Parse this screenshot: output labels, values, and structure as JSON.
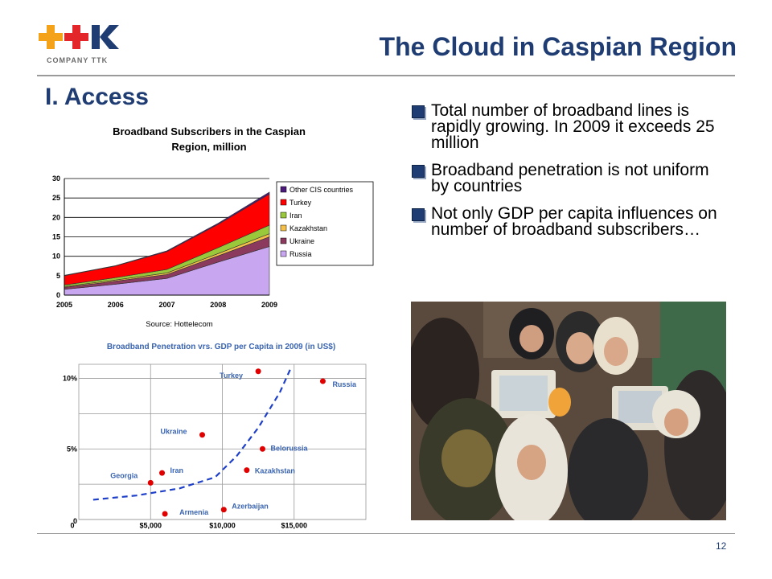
{
  "logo": {
    "mark": "++K",
    "subtitle": "COMPANY TTK"
  },
  "title": "The Cloud in Caspian Region",
  "section": "I. Access",
  "bullets": [
    "Total number of broadband lines is rapidly growing. In 2009 it exceeds 25 million",
    "Broadband penetration is not uniform by countries",
    "Not only GDP per capita influences on number of broadband subscribers…"
  ],
  "page_number": "12",
  "colors": {
    "title": "#1f3d73",
    "logo_orange": "#f5a21b",
    "logo_red": "#e2262a"
  },
  "chart_data": [
    {
      "type": "area",
      "title": "Broadband Subscribers in the Caspian Region, million",
      "source": "Source: Hottelecom",
      "x": [
        2005,
        2006,
        2007,
        2008,
        2009
      ],
      "ylim": [
        0,
        30
      ],
      "yticks": [
        0,
        5,
        10,
        15,
        20,
        25,
        30
      ],
      "stacked": true,
      "legend_position": "right",
      "series": [
        {
          "name": "Russia",
          "color": "#c9a6f0",
          "values": [
            1.5,
            2.8,
            4.3,
            8.5,
            12.5
          ]
        },
        {
          "name": "Ukraine",
          "color": "#8b3a5e",
          "values": [
            0.5,
            0.8,
            1.0,
            1.6,
            2.5
          ]
        },
        {
          "name": "Kazakhstan",
          "color": "#f5c04a",
          "values": [
            0.2,
            0.3,
            0.4,
            0.6,
            0.8
          ]
        },
        {
          "name": "Iran",
          "color": "#99c93a",
          "values": [
            0.4,
            0.6,
            0.9,
            1.5,
            2.2
          ]
        },
        {
          "name": "Turkey",
          "color": "#ff0000",
          "values": [
            2.4,
            3.0,
            4.6,
            6.0,
            8.0
          ]
        },
        {
          "name": "Other CIS countries",
          "color": "#4b1a7a",
          "values": [
            0.1,
            0.1,
            0.2,
            0.3,
            0.5
          ]
        }
      ]
    },
    {
      "type": "scatter",
      "title": "Broadband Penetration vrs. GDP per Capita in 2009 (in US$)",
      "xlim": [
        0,
        20000
      ],
      "ylim": [
        0,
        11
      ],
      "xticks": [
        {
          "v": 0,
          "label": "0"
        },
        {
          "v": 5000,
          "label": "$5,000"
        },
        {
          "v": 10000,
          "label": "$10,000"
        },
        {
          "v": 15000,
          "label": "$15,000"
        }
      ],
      "yticks": [
        {
          "v": 0,
          "label": "0"
        },
        {
          "v": 5,
          "label": "5%"
        },
        {
          "v": 10,
          "label": "10%"
        }
      ],
      "points": [
        {
          "label": "Turkey",
          "x": 12500,
          "y": 10.5
        },
        {
          "label": "Russia",
          "x": 17000,
          "y": 9.8
        },
        {
          "label": "Ukraine",
          "x": 8600,
          "y": 6.0
        },
        {
          "label": "Belorussia",
          "x": 12800,
          "y": 5.0
        },
        {
          "label": "Iran",
          "x": 5800,
          "y": 3.3
        },
        {
          "label": "Kazakhstan",
          "x": 11700,
          "y": 3.5
        },
        {
          "label": "Georgia",
          "x": 5000,
          "y": 2.6
        },
        {
          "label": "Armenia",
          "x": 6000,
          "y": 0.4
        },
        {
          "label": "Azerbaijan",
          "x": 10100,
          "y": 0.7
        }
      ],
      "trend": [
        [
          1000,
          1.4
        ],
        [
          4000,
          1.7
        ],
        [
          7000,
          2.2
        ],
        [
          9500,
          3.0
        ],
        [
          11000,
          4.5
        ],
        [
          12500,
          6.5
        ],
        [
          14000,
          9.0
        ],
        [
          14800,
          10.8
        ]
      ]
    }
  ]
}
